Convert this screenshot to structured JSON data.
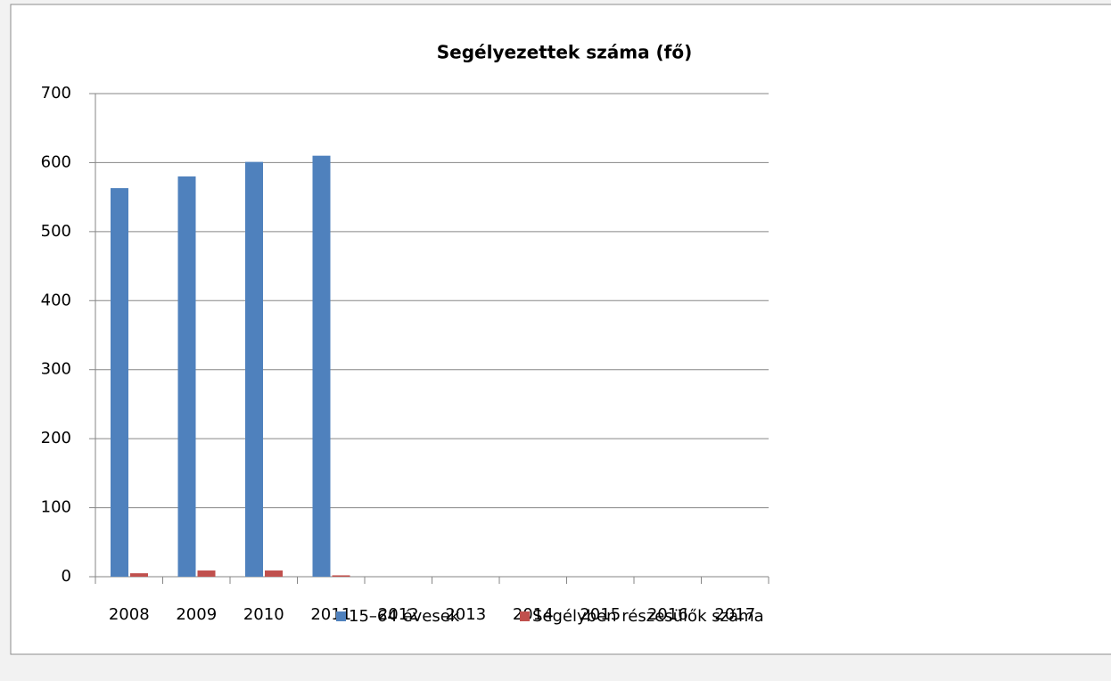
{
  "chart_data": {
    "type": "bar",
    "title": "Segélyezettek száma (fő)",
    "categories": [
      "2008",
      "2009",
      "2010",
      "2011",
      "2012",
      "2013",
      "2014",
      "2015",
      "2016",
      "2017"
    ],
    "series": [
      {
        "name": "15–64 évesek",
        "color": "#4f81bd",
        "values": [
          563,
          580,
          601,
          610,
          null,
          null,
          null,
          null,
          null,
          null
        ]
      },
      {
        "name": "Segélyben részesülők száma",
        "color": "#c0504d",
        "values": [
          5,
          9,
          9,
          2,
          null,
          null,
          null,
          null,
          null,
          null
        ]
      }
    ],
    "ylim": [
      0,
      700
    ],
    "yticks": [
      0,
      100,
      200,
      300,
      400,
      500,
      600,
      700
    ],
    "grid": true,
    "legend": "bottom"
  }
}
